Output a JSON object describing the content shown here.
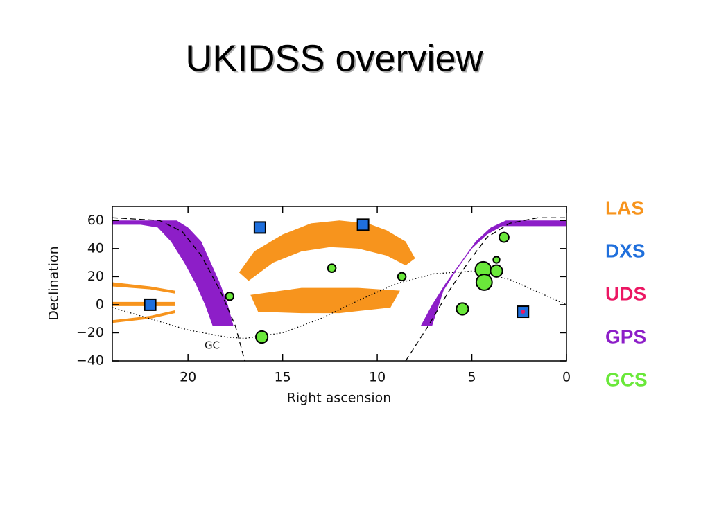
{
  "chart_data": {
    "type": "scatter",
    "title": "UKIDSS overview",
    "xlabel": "Right ascension",
    "ylabel": "Declination",
    "xlim": [
      24,
      0
    ],
    "ylim": [
      -40,
      70
    ],
    "xticks": [
      20,
      15,
      10,
      5,
      0
    ],
    "yticks": [
      60,
      40,
      20,
      0,
      {
        "value": -20,
        "label": "−20"
      },
      {
        "value": -40,
        "label": "−40"
      }
    ],
    "annotation": "GC",
    "series": [
      {
        "name": "LAS",
        "color": "#f7941d",
        "regions": [
          {
            "x": [
              17.3,
              16.5,
              15,
              13.5,
              12,
              10.5,
              9.5,
              8.5,
              8.0,
              8.5,
              9.5,
              11,
              12.5,
              14,
              15.5,
              16.8
            ],
            "y": [
              23,
              38,
              50,
              58,
              60,
              58,
              53,
              45,
              33,
              28,
              35,
              40,
              41,
              38,
              30,
              17
            ]
          },
          {
            "x": [
              16.7,
              14,
              11,
              8.8,
              9.3,
              12,
              14,
              16.3
            ],
            "y": [
              7,
              12,
              12,
              10,
              -2,
              -6,
              -6,
              -5
            ]
          },
          {
            "x": [
              24,
              22,
              20.7,
              20.7,
              22,
              24
            ],
            "y": [
              16,
              13,
              10,
              8,
              11,
              13
            ]
          },
          {
            "x": [
              24,
              20.7,
              20.7,
              24
            ],
            "y": [
              2,
              2,
              -1,
              -1
            ]
          },
          {
            "x": [
              24,
              22,
              20.7,
              20.7,
              22,
              24
            ],
            "y": [
              -11,
              -8,
              -4,
              -6,
              -10,
              -13
            ]
          }
        ]
      },
      {
        "name": "DXS",
        "color": "#1f6fdc",
        "marker": "square",
        "x": [
          22,
          16.2,
          10.75,
          2.3
        ],
        "y": [
          0,
          55,
          57,
          -5
        ]
      },
      {
        "name": "UDS",
        "color": "#ec1763",
        "marker": "dot",
        "x": [
          2.3
        ],
        "y": [
          -5
        ]
      },
      {
        "name": "GPS",
        "color": "#8d1ec8",
        "regions": [
          {
            "x": [
              24,
              20.6,
              20,
              19.3,
              18.8,
              18.3,
              17.9,
              17.6,
              18.7,
              19.1,
              19.6,
              20.2,
              20.9,
              21.6,
              22.5,
              24
            ],
            "y": [
              60,
              60,
              55,
              45,
              30,
              15,
              0,
              -15,
              -15,
              0,
              15,
              30,
              45,
              55,
              57,
              57
            ]
          },
          {
            "x": [
              7.7,
              7.1,
              6.4,
              5.6,
              4.8,
              4,
              3.2,
              0,
              0,
              3.4,
              4.2,
              5,
              5.8,
              6.5,
              7.1
            ],
            "y": [
              -15,
              0,
              15,
              30,
              45,
              55,
              60,
              60,
              56,
              56,
              50,
              40,
              25,
              10,
              -15
            ]
          }
        ]
      },
      {
        "name": "GCS",
        "color": "#6ae83a",
        "marker": "circle",
        "x": [
          17.8,
          16.1,
          12.4,
          8.7,
          5.5,
          4.4,
          4.35,
          3.7,
          3.7,
          3.3
        ],
        "y": [
          6,
          -23,
          26,
          20,
          -3,
          25,
          16,
          24,
          32,
          48
        ],
        "sizes": [
          1,
          2,
          1,
          1,
          2,
          3,
          3,
          2,
          0.6,
          1.4
        ]
      }
    ],
    "lines": [
      {
        "style": "dotted",
        "x": [
          24,
          22,
          20,
          18,
          17,
          15,
          13,
          11,
          9,
          7,
          5,
          3,
          1,
          0
        ],
        "y": [
          -2,
          -10,
          -18,
          -23,
          -24,
          -20,
          -10,
          3,
          15,
          22,
          24,
          18,
          6,
          0
        ]
      },
      {
        "style": "dashed",
        "x": [
          24,
          21.5,
          20.3,
          19.3,
          18.3,
          17.5,
          17,
          null,
          8.5,
          7.3,
          6.2,
          5.2,
          4.2,
          3,
          1.5,
          0
        ],
        "y": [
          62,
          60,
          52,
          35,
          10,
          -15,
          -40,
          null,
          -40,
          -15,
          10,
          30,
          48,
          58,
          62,
          62
        ]
      }
    ]
  }
}
